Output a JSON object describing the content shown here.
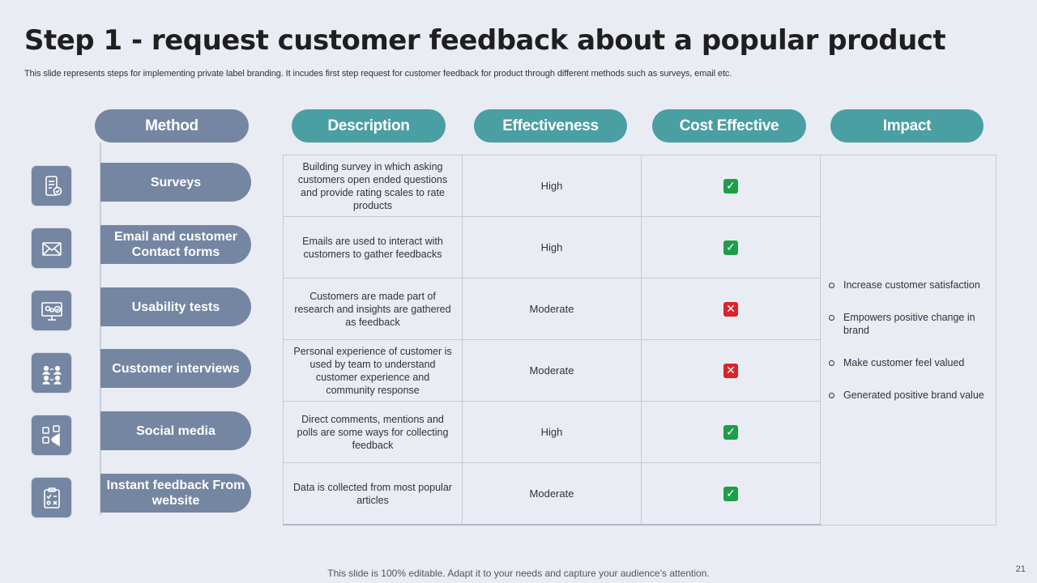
{
  "slide": {
    "title": "Step 1 - request customer feedback about a popular product",
    "subtitle": "This slide represents steps for implementing private label branding. It incudes first step request for customer feedback for product through different methods such as surveys, email etc.",
    "footer": "This slide is 100% editable. Adapt it to your needs and capture your audience’s attention.",
    "page_number": "21"
  },
  "headers": {
    "method": "Method",
    "description": "Description",
    "effectiveness": "Effectiveness",
    "cost_effective": "Cost Effective",
    "impact": "Impact"
  },
  "rows": [
    {
      "method": "Surveys",
      "icon": "mobile-survey-icon",
      "description": "Building survey in which asking customers open ended questions and provide rating scales to rate products",
      "effectiveness": "High",
      "cost_effective": true
    },
    {
      "method": "Email and customer Contact forms",
      "icon": "email-envelope-icon",
      "description": "Emails are used to interact with customers to gather feedbacks",
      "effectiveness": "High",
      "cost_effective": true
    },
    {
      "method": "Usability tests",
      "icon": "monitor-settings-icon",
      "description": "Customers are made part of research and insights are gathered as feedback",
      "effectiveness": "Moderate",
      "cost_effective": false
    },
    {
      "method": "Customer interviews",
      "icon": "people-conversation-icon",
      "description": "Personal experience of customer is used by team to understand customer experience and community response",
      "effectiveness": "Moderate",
      "cost_effective": false
    },
    {
      "method": "Social media",
      "icon": "social-megaphone-icon",
      "description": "Direct comments, mentions and polls are some ways for collecting feedback",
      "effectiveness": "High",
      "cost_effective": true
    },
    {
      "method": "Instant feedback From website",
      "icon": "clipboard-checklist-icon",
      "description": "Data is collected from most popular articles",
      "effectiveness": "Moderate",
      "cost_effective": true
    }
  ],
  "impact": [
    "Increase customer satisfaction",
    "Empowers positive change in brand",
    "Make customer feel valued",
    "Generated positive brand value"
  ],
  "marks": {
    "yes": "✓",
    "no": "✕"
  },
  "colors": {
    "background": "#e9ecf3",
    "method_pill": "#7586a3",
    "header_pill": "#4a9fa3",
    "check": "#1e9e4a",
    "cross": "#d8242b"
  }
}
